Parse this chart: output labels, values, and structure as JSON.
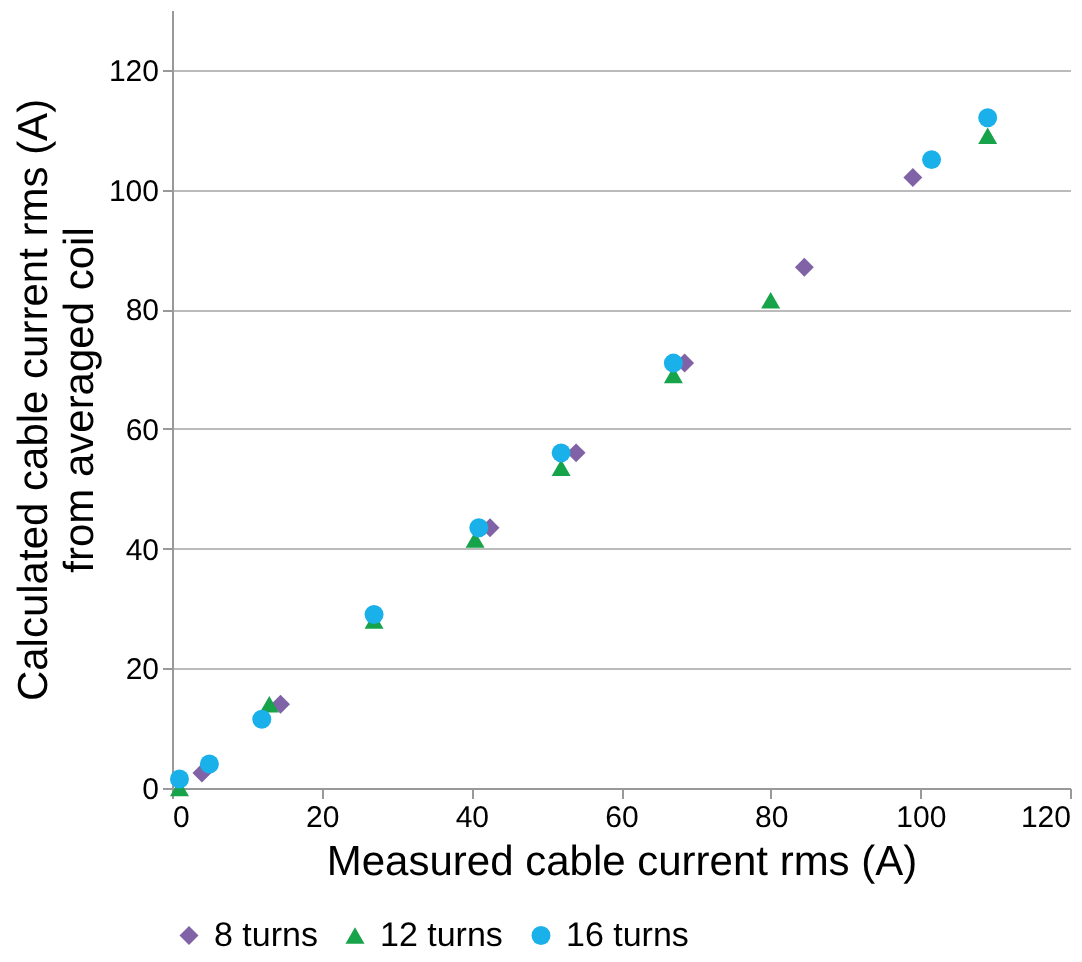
{
  "chart_data": {
    "type": "scatter",
    "xlabel": "Measured cable current rms (A)",
    "ylabel": "Calculated cable current rms (A) from averaged coil",
    "series": [
      {
        "name": "8 turns",
        "color": "#7f63a6",
        "marker": "diamond",
        "x": [
          4,
          14.5,
          42.5,
          54,
          68.5,
          84.5,
          99
        ],
        "values": [
          2.5,
          14,
          43.5,
          56,
          71,
          87,
          102
        ]
      },
      {
        "name": "12 turns",
        "color": "#17a34a",
        "marker": "triangle",
        "x": [
          1,
          13,
          27,
          40.5,
          52,
          67,
          80,
          109
        ],
        "values": [
          0,
          14,
          28,
          41.5,
          53.5,
          69,
          81.5,
          109
        ]
      },
      {
        "name": "16 turns",
        "color": "#1ab0ea",
        "marker": "circle",
        "x": [
          1,
          5,
          12,
          27,
          41,
          52,
          67,
          101.5,
          109
        ],
        "values": [
          1.5,
          4,
          11.5,
          29,
          43.5,
          56,
          71,
          105,
          112
        ]
      }
    ],
    "xlim": [
      0,
      120
    ],
    "xticks": [
      0,
      20,
      40,
      60,
      80,
      100,
      120
    ],
    "ylim": [
      0,
      130
    ],
    "yticks": [
      0,
      20,
      40,
      60,
      80,
      100,
      120
    ],
    "grid": "y",
    "legend": "bottom"
  }
}
